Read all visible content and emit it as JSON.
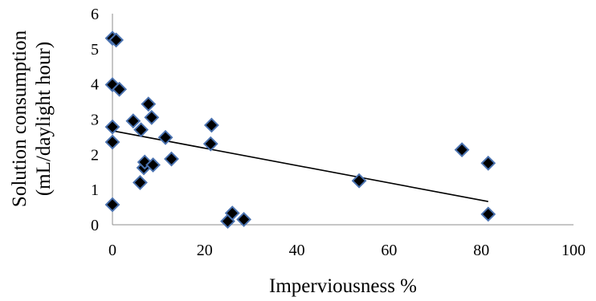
{
  "chart_data": {
    "type": "scatter",
    "title": "",
    "xlabel": "Imperviousness %",
    "ylabel_lines": [
      "Solution consumption",
      "(mL/daylight hour)"
    ],
    "xlim": [
      0,
      100
    ],
    "ylim": [
      0,
      6
    ],
    "x_ticks": [
      "0",
      "20",
      "40",
      "60",
      "80",
      "100"
    ],
    "y_ticks": [
      "0",
      "1",
      "2",
      "3",
      "4",
      "5",
      "6"
    ],
    "grid": false,
    "legend": "none",
    "marker": {
      "shape": "diamond",
      "fill": "#000000",
      "stroke": "#4a72b0"
    },
    "trendline": {
      "x": [
        0,
        81.5
      ],
      "y": [
        2.67,
        0.66
      ],
      "color": "#000000"
    },
    "points": [
      {
        "x": 0,
        "y": 5.3
      },
      {
        "x": 0.8,
        "y": 5.25
      },
      {
        "x": 0,
        "y": 3.98
      },
      {
        "x": 1.5,
        "y": 3.85
      },
      {
        "x": 0,
        "y": 2.78
      },
      {
        "x": 0,
        "y": 2.35
      },
      {
        "x": 0,
        "y": 0.57
      },
      {
        "x": 4.5,
        "y": 2.95
      },
      {
        "x": 6.2,
        "y": 2.7
      },
      {
        "x": 6.0,
        "y": 1.2
      },
      {
        "x": 6.8,
        "y": 1.62
      },
      {
        "x": 7.0,
        "y": 1.78
      },
      {
        "x": 7.8,
        "y": 3.43
      },
      {
        "x": 8.5,
        "y": 3.05
      },
      {
        "x": 8.8,
        "y": 1.7
      },
      {
        "x": 11.5,
        "y": 2.48
      },
      {
        "x": 12.8,
        "y": 1.87
      },
      {
        "x": 21.5,
        "y": 2.83
      },
      {
        "x": 21.3,
        "y": 2.3
      },
      {
        "x": 25.0,
        "y": 0.1
      },
      {
        "x": 26.0,
        "y": 0.33
      },
      {
        "x": 28.5,
        "y": 0.15
      },
      {
        "x": 53.5,
        "y": 1.25
      },
      {
        "x": 75.8,
        "y": 2.13
      },
      {
        "x": 81.5,
        "y": 1.75
      },
      {
        "x": 81.5,
        "y": 0.3
      }
    ]
  }
}
